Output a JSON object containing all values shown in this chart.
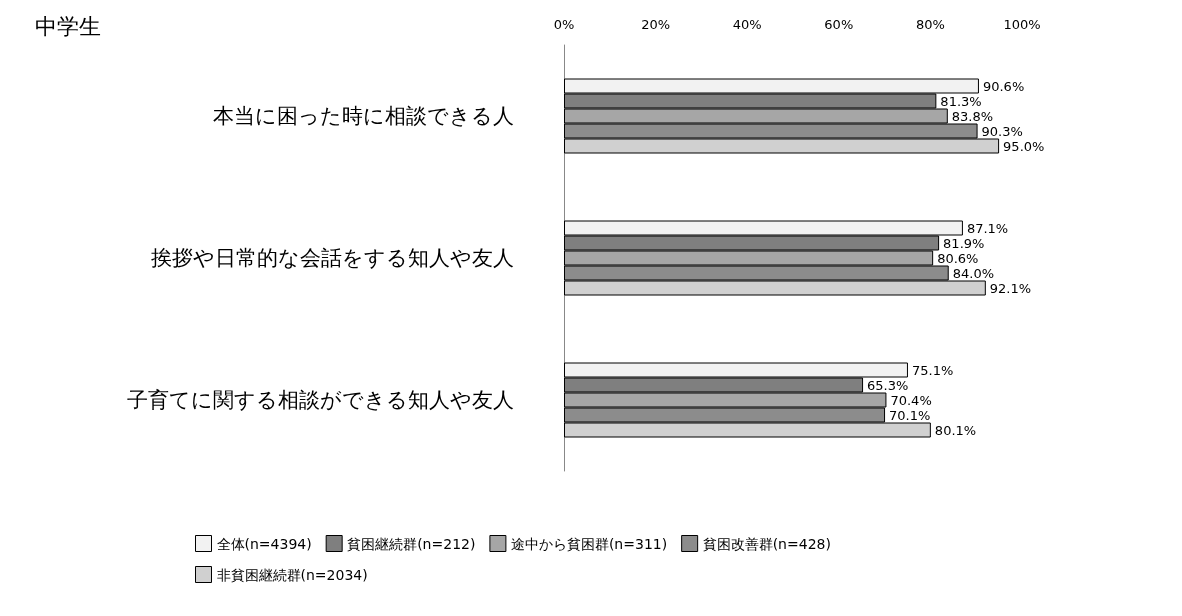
{
  "chart_data": {
    "type": "bar",
    "orientation": "horizontal",
    "title": "中学生",
    "categories": [
      "本当に困った時に相談できる人",
      "挨拶や日常的な会話をする知人や友人",
      "子育てに関する相談ができる知人や友人"
    ],
    "series": [
      {
        "name": "全体(n=4394)",
        "color": "#f2f2f2",
        "values": [
          90.6,
          87.1,
          75.1
        ],
        "value_labels": [
          "90.6%",
          "87.1%",
          "75.1%"
        ]
      },
      {
        "name": "貧困継続群(n=212)",
        "color": "#7f7f7f",
        "values": [
          81.3,
          81.9,
          65.3
        ],
        "value_labels": [
          "81.3%",
          "81.9%",
          "65.3%"
        ]
      },
      {
        "name": "途中から貧困群(n=311)",
        "color": "#a6a6a6",
        "values": [
          83.8,
          80.6,
          70.4
        ],
        "value_labels": [
          "83.8%",
          "80.6%",
          "70.4%"
        ]
      },
      {
        "name": "貧困改善群(n=428)",
        "color": "#8c8c8c",
        "values": [
          90.3,
          84.0,
          70.1
        ],
        "value_labels": [
          "90.3%",
          "84.0%",
          "70.1%"
        ]
      },
      {
        "name": "非貧困継続群(n=2034)",
        "color": "#d0d0d0",
        "values": [
          95.0,
          92.1,
          80.1
        ],
        "value_labels": [
          "95.0%",
          "92.1%",
          "80.1%"
        ]
      }
    ],
    "xlim": [
      0,
      100
    ],
    "xticks": [
      {
        "value": 0,
        "label": "0%"
      },
      {
        "value": 20,
        "label": "20%"
      },
      {
        "value": 40,
        "label": "40%"
      },
      {
        "value": 60,
        "label": "60%"
      },
      {
        "value": 80,
        "label": "80%"
      },
      {
        "value": 100,
        "label": "100%"
      }
    ],
    "grid": false,
    "legend": "bottom"
  }
}
